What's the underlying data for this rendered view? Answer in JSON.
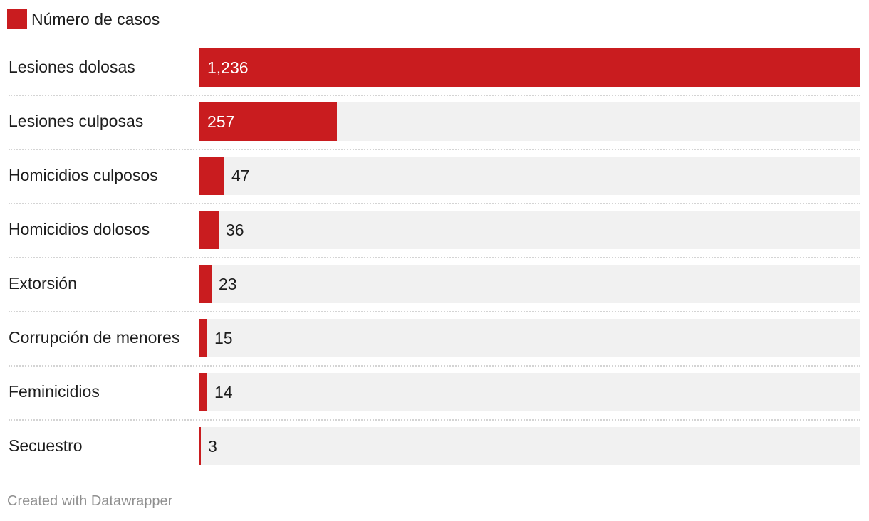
{
  "legend": {
    "label": "Número de casos",
    "color": "#c91c1f"
  },
  "footer": {
    "credit": "Created with Datawrapper"
  },
  "colors": {
    "bar": "#c91c1f",
    "track": "#f1f1f1",
    "divider": "#d4d4d4"
  },
  "chart_data": {
    "type": "bar",
    "orientation": "horizontal",
    "categories": [
      "Lesiones dolosas",
      "Lesiones culposas",
      "Homicidios culposos",
      "Homicidios dolosos",
      "Extorsión",
      "Corrupción de menores",
      "Feminicidios",
      "Secuestro"
    ],
    "series": [
      {
        "name": "Número de casos",
        "values": [
          1236,
          257,
          47,
          36,
          23,
          15,
          14,
          3
        ]
      }
    ],
    "value_labels": [
      "1,236",
      "257",
      "47",
      "36",
      "23",
      "15",
      "14",
      "3"
    ],
    "xlim": [
      0,
      1236
    ],
    "legend_position": "top-left",
    "grid": false
  }
}
